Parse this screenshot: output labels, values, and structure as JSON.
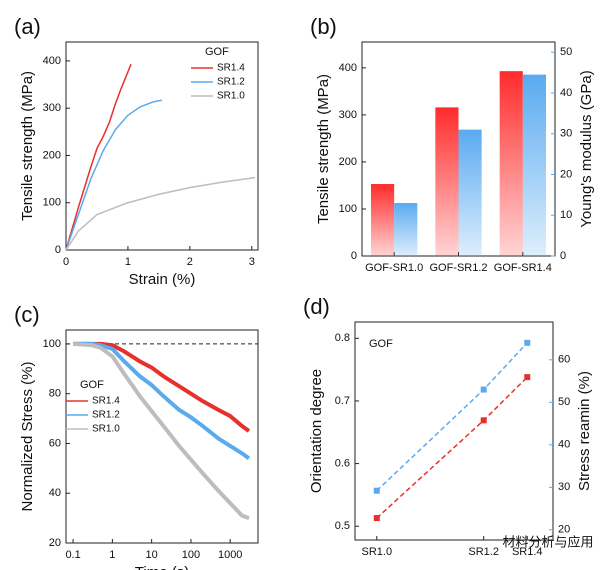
{
  "chart_data": [
    {
      "type": "line",
      "panel_label": "(a)",
      "xlabel": "Strain (%)",
      "ylabel": "Tensile strength (MPa)",
      "xlim": [
        0,
        3.1
      ],
      "ylim": [
        0,
        440
      ],
      "xticks": [
        0,
        1,
        2,
        3
      ],
      "yticks": [
        0,
        100,
        200,
        300,
        400
      ],
      "legend_title": "GOF",
      "series": [
        {
          "name": "SR1.4",
          "color": "#e8302a",
          "x": [
            0,
            0.2,
            0.4,
            0.5,
            0.6,
            0.7,
            0.8,
            0.9,
            1.05
          ],
          "values": [
            0,
            90,
            175,
            215,
            240,
            270,
            310,
            345,
            393
          ]
        },
        {
          "name": "SR1.2",
          "color": "#5aaaf0",
          "x": [
            0,
            0.2,
            0.4,
            0.6,
            0.8,
            1.0,
            1.2,
            1.4,
            1.55
          ],
          "values": [
            0,
            75,
            150,
            210,
            255,
            285,
            303,
            313,
            317
          ]
        },
        {
          "name": "SR1.0",
          "color": "#bdbdbd",
          "x": [
            0,
            0.2,
            0.5,
            1.0,
            1.5,
            2.0,
            2.5,
            3.05
          ],
          "values": [
            0,
            40,
            75,
            100,
            118,
            132,
            143,
            153
          ]
        }
      ]
    },
    {
      "type": "bar",
      "panel_label": "(b)",
      "ylabel": "Tensile strength (MPa)",
      "y2label": "Young's modulus (GPa)",
      "categories": [
        "GOF-SR1.0",
        "GOF-SR1.2",
        "GOF-SR1.4"
      ],
      "ylim": [
        0,
        455
      ],
      "yticks": [
        0,
        100,
        200,
        300,
        400
      ],
      "y2lim": [
        0,
        52.5
      ],
      "y2ticks": [
        0,
        10,
        20,
        30,
        40,
        50
      ],
      "series": [
        {
          "color": "#ff2b2b",
          "values": [
            153,
            316,
            393
          ]
        },
        {
          "color": "#5aaaf0",
          "axis": "y2",
          "values": [
            13,
            31,
            44.5
          ]
        }
      ]
    },
    {
      "type": "line",
      "panel_label": "(c)",
      "xlabel": "Time (s)",
      "ylabel": "Normalized Stress (%)",
      "xscale": "log",
      "xlim": [
        0.066,
        5100
      ],
      "ylim": [
        20,
        105.6
      ],
      "xticks": [
        0.1,
        1,
        10,
        100,
        1000
      ],
      "yticks": [
        20,
        40,
        60,
        80,
        100
      ],
      "reference_line": 100,
      "legend_title": "GOF",
      "marker": "circle",
      "x": [
        0.1,
        0.3,
        0.5,
        1,
        2,
        5,
        10,
        20,
        50,
        100,
        200,
        500,
        1000,
        2000,
        3000
      ],
      "series": [
        {
          "name": "SR1.4",
          "color": "#e8302a",
          "values": [
            100,
            100,
            100,
            99.5,
            97,
            93,
            90.5,
            87,
            83,
            80,
            77,
            73.5,
            71,
            67,
            65
          ]
        },
        {
          "name": "SR1.2",
          "color": "#5aaaf0",
          "values": [
            100,
            100,
            99.5,
            98,
            93,
            87,
            83.5,
            79,
            73.5,
            70.5,
            67,
            62,
            59,
            56,
            54
          ]
        },
        {
          "name": "SR1.0",
          "color": "#bdbdbd",
          "values": [
            100,
            99.5,
            98.5,
            95,
            88,
            79,
            73,
            67,
            59,
            53.5,
            48,
            41,
            36,
            31,
            30
          ]
        }
      ]
    },
    {
      "type": "line",
      "panel_label": "(d)",
      "ylabel": "Orientation degree",
      "y2label": "Stress reamin (%)",
      "categories": [
        "SR1.0",
        "SR1.2",
        "SR1.4"
      ],
      "annotation": "GOF",
      "dashed": true,
      "marker": "square",
      "ylim": [
        0.478,
        0.826
      ],
      "yticks": [
        0.5,
        0.6,
        0.7,
        0.8
      ],
      "y2lim": [
        17.6,
        68.9
      ],
      "y2ticks": [
        20,
        30,
        40,
        50,
        60
      ],
      "series": [
        {
          "color": "#e8302a",
          "values": [
            0.513,
            0.669,
            0.738
          ]
        },
        {
          "color": "#5aaaf0",
          "axis": "y2",
          "values": [
            29.2,
            53,
            64
          ]
        }
      ]
    }
  ],
  "watermark": "材料分析与应用"
}
